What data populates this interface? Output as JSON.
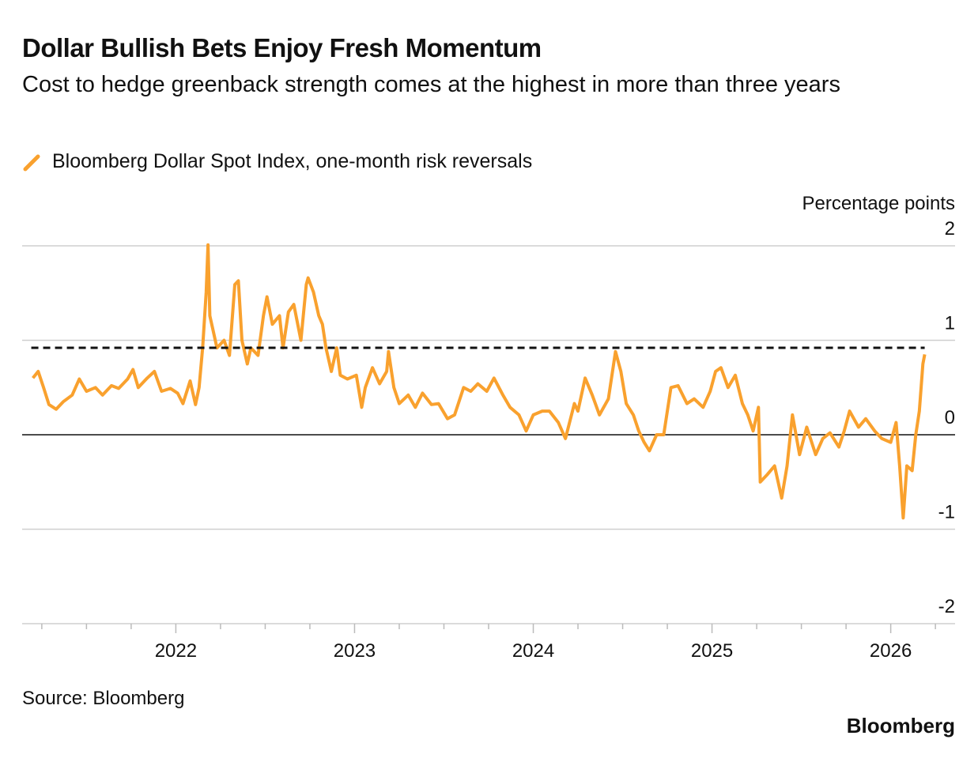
{
  "chart_data": {
    "type": "line",
    "title": "Dollar Bullish Bets Enjoy Fresh Momentum",
    "subtitle": "Cost to hedge greenback strength comes at the highest in more than three years",
    "y_axis_label": "Percentage points",
    "source": "Source: Bloomberg",
    "brand": "Bloomberg",
    "x": [
      2021.2,
      2021.23,
      2021.26,
      2021.29,
      2021.33,
      2021.37,
      2021.42,
      2021.46,
      2021.5,
      2021.55,
      2021.59,
      2021.64,
      2021.68,
      2021.73,
      2021.76,
      2021.79,
      2021.84,
      2021.88,
      2021.92,
      2021.97,
      2022.01,
      2022.04,
      2022.08,
      2022.11,
      2022.13,
      2022.15,
      2022.17,
      2022.18,
      2022.19,
      2022.21,
      2022.23,
      2022.27,
      2022.3,
      2022.33,
      2022.35,
      2022.37,
      2022.4,
      2022.42,
      2022.46,
      2022.49,
      2022.51,
      2022.54,
      2022.58,
      2022.6,
      2022.63,
      2022.66,
      2022.7,
      2022.73,
      2022.74,
      2022.77,
      2022.8,
      2022.82,
      2022.84,
      2022.87,
      2022.9,
      2022.92,
      2022.96,
      2023.01,
      2023.04,
      2023.06,
      2023.1,
      2023.14,
      2023.18,
      2023.19,
      2023.22,
      2023.25,
      2023.3,
      2023.34,
      2023.38,
      2023.43,
      2023.47,
      2023.52,
      2023.56,
      2023.61,
      2023.65,
      2023.69,
      2023.74,
      2023.78,
      2023.83,
      2023.87,
      2023.92,
      2023.96,
      2024.0,
      2024.05,
      2024.09,
      2024.14,
      2024.18,
      2024.23,
      2024.25,
      2024.29,
      2024.33,
      2024.37,
      2024.42,
      2024.46,
      2024.49,
      2024.52,
      2024.56,
      2024.59,
      2024.62,
      2024.65,
      2024.69,
      2024.73,
      2024.77,
      2024.81,
      2024.86,
      2024.9,
      2024.95,
      2024.99,
      2025.02,
      2025.05,
      2025.09,
      2025.13,
      2025.17,
      2025.2,
      2025.23,
      2025.26,
      2025.27,
      2025.31,
      2025.35,
      2025.39,
      2025.42,
      2025.45,
      2025.49,
      2025.53,
      2025.58,
      2025.62,
      2025.66,
      2025.71,
      2025.74,
      2025.77,
      2025.82,
      2025.86,
      2025.91,
      2025.95,
      2026.0,
      2026.03,
      2026.05,
      2026.07,
      2026.09,
      2026.12,
      2026.14,
      2026.16,
      2026.18,
      2026.19
    ],
    "series": [
      {
        "name": "Bloomberg Dollar Spot Index, one-month risk reversals",
        "color": "#f9a12e",
        "values": [
          0.6,
          0.67,
          0.5,
          0.32,
          0.27,
          0.35,
          0.42,
          0.59,
          0.46,
          0.5,
          0.42,
          0.52,
          0.49,
          0.59,
          0.69,
          0.5,
          0.6,
          0.67,
          0.46,
          0.49,
          0.44,
          0.33,
          0.57,
          0.32,
          0.5,
          0.92,
          1.51,
          2.01,
          1.26,
          1.09,
          0.92,
          1.0,
          0.84,
          1.59,
          1.63,
          1.0,
          0.75,
          0.92,
          0.84,
          1.26,
          1.46,
          1.17,
          1.26,
          0.92,
          1.3,
          1.38,
          1.0,
          1.59,
          1.66,
          1.51,
          1.26,
          1.17,
          0.92,
          0.67,
          0.92,
          0.63,
          0.59,
          0.63,
          0.29,
          0.5,
          0.71,
          0.54,
          0.67,
          0.88,
          0.5,
          0.33,
          0.42,
          0.29,
          0.44,
          0.32,
          0.33,
          0.17,
          0.21,
          0.5,
          0.46,
          0.54,
          0.46,
          0.6,
          0.42,
          0.29,
          0.21,
          0.04,
          0.21,
          0.25,
          0.25,
          0.13,
          -0.04,
          0.33,
          0.25,
          0.6,
          0.42,
          0.21,
          0.38,
          0.88,
          0.67,
          0.33,
          0.21,
          0.04,
          -0.08,
          -0.17,
          0.0,
          0.0,
          0.5,
          0.52,
          0.33,
          0.38,
          0.29,
          0.46,
          0.67,
          0.71,
          0.5,
          0.63,
          0.33,
          0.21,
          0.04,
          0.29,
          -0.5,
          -0.42,
          -0.33,
          -0.67,
          -0.33,
          0.21,
          -0.21,
          0.08,
          -0.21,
          -0.04,
          0.02,
          -0.13,
          0.04,
          0.25,
          0.08,
          0.17,
          0.04,
          -0.04,
          -0.08,
          0.13,
          -0.33,
          -0.88,
          -0.33,
          -0.38,
          0.0,
          0.25,
          0.75,
          0.85
        ]
      }
    ],
    "reference_line": 0.92,
    "xlim": [
      2021.14,
      2026.36
    ],
    "xticks": [
      2022,
      2023,
      2024,
      2025,
      2026
    ],
    "xminorticks": [
      2021.25,
      2021.5,
      2021.75,
      2022.25,
      2022.5,
      2022.75,
      2023.25,
      2023.5,
      2023.75,
      2024.25,
      2024.5,
      2024.75,
      2025.25,
      2025.5,
      2025.75,
      2026.25
    ],
    "ylim": [
      -2,
      2
    ],
    "yticks": [
      -2,
      -1,
      0,
      1,
      2
    ],
    "grid": true
  }
}
